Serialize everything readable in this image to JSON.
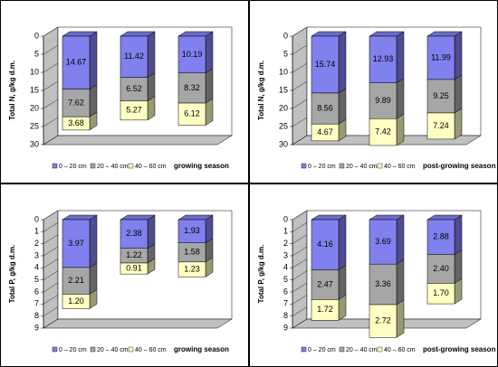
{
  "chart_data": [
    {
      "type": "bar3d",
      "ylabel": "Total N, g/kg d.m.",
      "annotation": "growing season",
      "legend": "bottom",
      "y_inverted": true,
      "categories": [
        null,
        null,
        null
      ],
      "ylim": [
        0,
        30
      ],
      "yticks": [
        0,
        5,
        10,
        15,
        20,
        25,
        30
      ],
      "series": [
        {
          "name": "0 – 20 cm",
          "color": "#8080ee",
          "values": [
            14.67,
            11.42,
            10.19
          ],
          "value_labels": [
            "14.67",
            "11.42",
            "10.19"
          ]
        },
        {
          "name": "20 – 40 cm",
          "color": "#a6a6a6",
          "values": [
            7.62,
            6.52,
            8.32
          ],
          "value_labels": [
            "7.62",
            "6.52",
            "8.32"
          ]
        },
        {
          "name": "40 – 60 cm",
          "color": "#ffffc4",
          "values": [
            3.68,
            5.27,
            6.12
          ],
          "value_labels": [
            "3.68",
            "5.27",
            "6.12"
          ]
        }
      ]
    },
    {
      "type": "bar3d",
      "ylabel": "Total N, g/kg d.m.",
      "annotation": "post-growing season",
      "legend": "bottom",
      "y_inverted": true,
      "categories": [
        null,
        null,
        null
      ],
      "ylim": [
        0,
        30
      ],
      "yticks": [
        0,
        5,
        10,
        15,
        20,
        25,
        30
      ],
      "series": [
        {
          "name": "0 – 20 cm",
          "color": "#8080ee",
          "values": [
            15.74,
            12.93,
            11.99
          ],
          "value_labels": [
            "15.74",
            "12.93",
            "11.99"
          ]
        },
        {
          "name": "20 – 40 cm",
          "color": "#a6a6a6",
          "values": [
            8.56,
            9.89,
            9.25
          ],
          "value_labels": [
            "8.56",
            "9.89",
            "9.25"
          ]
        },
        {
          "name": "40 – 60 cm",
          "color": "#ffffc4",
          "values": [
            4.67,
            7.42,
            7.24
          ],
          "value_labels": [
            "4.67",
            "7.42",
            "7.24"
          ]
        }
      ]
    },
    {
      "type": "bar3d",
      "ylabel": "Total P, g/kg d.m.",
      "annotation": "growing season",
      "legend": "bottom",
      "y_inverted": true,
      "categories": [
        null,
        null,
        null
      ],
      "ylim": [
        0,
        9
      ],
      "yticks": [
        0,
        1,
        2,
        3,
        4,
        5,
        6,
        7,
        8,
        9
      ],
      "series": [
        {
          "name": "0 – 20 cm",
          "color": "#8080ee",
          "values": [
            3.97,
            2.38,
            1.93
          ],
          "value_labels": [
            "3.97",
            "2.38",
            "1.93"
          ]
        },
        {
          "name": "20 – 40 cm",
          "color": "#a6a6a6",
          "values": [
            2.21,
            1.22,
            1.58
          ],
          "value_labels": [
            "2.21",
            "1.22",
            "1.58"
          ]
        },
        {
          "name": "40 – 60 cm",
          "color": "#ffffc4",
          "values": [
            1.2,
            0.91,
            1.23
          ],
          "value_labels": [
            "1.20",
            "0.91",
            "1.23"
          ]
        }
      ]
    },
    {
      "type": "bar3d",
      "ylabel": "Total P, g/kg d.m.",
      "annotation": "post-growing season",
      "legend": "bottom",
      "y_inverted": true,
      "categories": [
        null,
        null,
        null
      ],
      "ylim": [
        0,
        9
      ],
      "yticks": [
        0,
        1,
        2,
        3,
        4,
        5,
        6,
        7,
        8,
        9
      ],
      "series": [
        {
          "name": "0 – 20 cm",
          "color": "#8080ee",
          "values": [
            4.16,
            3.69,
            2.88
          ],
          "value_labels": [
            "4.16",
            "3.69",
            "2.88"
          ]
        },
        {
          "name": "20 – 40 cm",
          "color": "#a6a6a6",
          "values": [
            2.47,
            3.36,
            2.4
          ],
          "value_labels": [
            "2.47",
            "3.36",
            "2.40"
          ]
        },
        {
          "name": "40 – 60 cm",
          "color": "#ffffc4",
          "values": [
            1.72,
            2.72,
            1.7
          ],
          "value_labels": [
            "1.72",
            "2.72",
            "1.70"
          ]
        }
      ]
    }
  ]
}
